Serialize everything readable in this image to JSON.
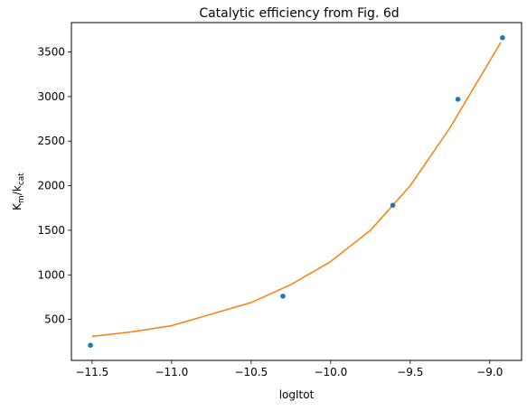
{
  "chart_data": {
    "type": "scatter",
    "title": "Catalytic efficiency from Fig. 6d",
    "xlabel": "logItot",
    "ylabel": {
      "main": "K",
      "sub1": "m",
      "sep": "/k",
      "sub2": "cat"
    },
    "xlim": [
      -11.63,
      -8.8
    ],
    "ylim": [
      40,
      3830
    ],
    "xticks": [
      -11.5,
      -11.0,
      -10.5,
      -10.0,
      -9.5,
      -9.0
    ],
    "xtick_labels": [
      "−11.5",
      "−11.0",
      "−10.5",
      "−10.0",
      "−9.5",
      "−9.0"
    ],
    "yticks": [
      500,
      1000,
      1500,
      2000,
      2500,
      3000,
      3500
    ],
    "ytick_labels": [
      "500",
      "1000",
      "1500",
      "2000",
      "2500",
      "3000",
      "3500"
    ],
    "grid": false,
    "series": [
      {
        "kind": "scatter",
        "color": "#1f77b4",
        "x": [
          -11.51,
          -10.3,
          -9.61,
          -9.2,
          -8.92
        ],
        "y": [
          210,
          760,
          1780,
          2970,
          3660
        ]
      },
      {
        "kind": "line",
        "color": "#ff7f0e",
        "x": [
          -11.5,
          -11.25,
          -11.0,
          -10.75,
          -10.5,
          -10.25,
          -10.0,
          -9.75,
          -9.5,
          -9.25,
          -8.93
        ],
        "y": [
          310,
          360,
          430,
          560,
          690,
          890,
          1150,
          1500,
          2000,
          2650,
          3610
        ]
      }
    ]
  }
}
